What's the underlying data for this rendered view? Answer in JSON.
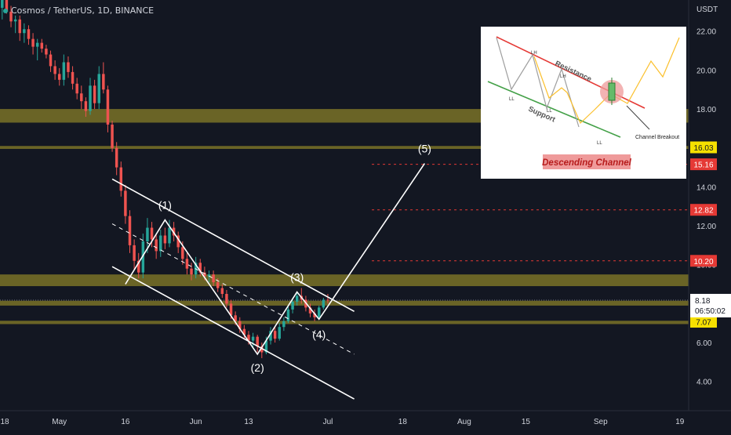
{
  "header": {
    "symbol": "Cosmos / TetherUS, 1D, BINANCE"
  },
  "colors": {
    "background": "#131722",
    "up_candle": "#26a69a",
    "down_candle": "#ef5350",
    "zone": "#b2a429",
    "text": "#d1d4dc",
    "target_line": "#e53935",
    "pattern": "#ffffff"
  },
  "chart_data": {
    "type": "candlestick",
    "title": "Cosmos / TetherUS, 1D, BINANCE",
    "price_axis_label": "USDT",
    "y_ticks": [
      4.0,
      6.0,
      8.0,
      10.0,
      12.0,
      14.0,
      18.0,
      20.0,
      22.0
    ],
    "ylim": [
      2.5,
      23.6
    ],
    "x_ticks": [
      "18",
      "May",
      "16",
      "Jun",
      "13",
      "Jul",
      "18",
      "Aug",
      "15",
      "Sep",
      "19"
    ],
    "x_tick_days": [
      -13,
      0,
      15,
      31,
      43,
      61,
      78,
      92,
      106,
      123,
      141
    ],
    "xlim_days": [
      -13.5,
      143
    ],
    "current_price": "8.18",
    "countdown": "06:50:02",
    "price_labels": [
      {
        "text": "16.03",
        "value": 16.03,
        "style": "zone"
      },
      {
        "text": "15.16",
        "value": 15.16,
        "style": "target"
      },
      {
        "text": "12.82",
        "value": 12.82,
        "style": "target"
      },
      {
        "text": "10.20",
        "value": 10.2,
        "style": "target"
      },
      {
        "text": "7.07",
        "value": 7.07,
        "style": "zone"
      }
    ],
    "zones": [
      {
        "low": 17.3,
        "high": 18.0
      },
      {
        "low": 15.95,
        "high": 16.1
      },
      {
        "low": 8.9,
        "high": 9.5
      },
      {
        "low": 7.9,
        "high": 8.15
      },
      {
        "low": 6.95,
        "high": 7.12
      }
    ],
    "target_levels": [
      15.16,
      12.82,
      10.2
    ],
    "candles": [
      [
        -13,
        23.2,
        23.8,
        22.6,
        23.6
      ],
      [
        -12,
        23.6,
        23.9,
        22.9,
        23.0
      ],
      [
        -11,
        23.0,
        23.3,
        22.2,
        22.5
      ],
      [
        -10,
        22.5,
        22.8,
        21.9,
        22.6
      ],
      [
        -9,
        22.6,
        22.8,
        21.5,
        21.9
      ],
      [
        -8,
        21.9,
        22.4,
        21.4,
        22.1
      ],
      [
        -7,
        22.1,
        22.3,
        21.3,
        21.6
      ],
      [
        -6,
        21.6,
        21.9,
        20.8,
        21.2
      ],
      [
        -5,
        21.2,
        21.6,
        20.5,
        21.4
      ],
      [
        -4,
        21.4,
        21.6,
        20.9,
        21.1
      ],
      [
        -3,
        21.1,
        21.3,
        20.6,
        20.8
      ],
      [
        -2,
        20.8,
        21.0,
        19.9,
        20.2
      ],
      [
        -1,
        20.2,
        20.5,
        19.5,
        19.8
      ],
      [
        0,
        19.8,
        20.1,
        19.2,
        19.5
      ],
      [
        1,
        19.5,
        20.8,
        19.2,
        20.4
      ],
      [
        2,
        20.4,
        20.7,
        19.6,
        19.9
      ],
      [
        3,
        19.9,
        20.2,
        19.0,
        19.3
      ],
      [
        4,
        19.3,
        19.6,
        18.5,
        18.8
      ],
      [
        5,
        18.8,
        19.2,
        18.0,
        18.4
      ],
      [
        6,
        18.4,
        18.6,
        17.6,
        17.9
      ],
      [
        7,
        17.9,
        19.6,
        17.7,
        19.2
      ],
      [
        8,
        19.2,
        19.5,
        18.0,
        18.3
      ],
      [
        9,
        18.3,
        20.2,
        18.0,
        19.8
      ],
      [
        10,
        19.8,
        20.4,
        18.8,
        19.0
      ],
      [
        11,
        19.0,
        19.2,
        16.8,
        17.2
      ],
      [
        12,
        17.2,
        17.4,
        15.8,
        16.0
      ],
      [
        13,
        16.0,
        16.3,
        14.6,
        15.0
      ],
      [
        14,
        15.0,
        15.3,
        13.5,
        13.8
      ],
      [
        15,
        13.8,
        14.1,
        12.1,
        12.5
      ],
      [
        16,
        12.5,
        12.8,
        10.6,
        11.0
      ],
      [
        17,
        11.0,
        11.3,
        9.7,
        10.2
      ],
      [
        18,
        10.2,
        10.6,
        9.3,
        9.6
      ],
      [
        19,
        9.6,
        11.6,
        9.3,
        11.2
      ],
      [
        20,
        11.2,
        12.4,
        10.6,
        11.9
      ],
      [
        21,
        11.9,
        12.2,
        10.9,
        11.3
      ],
      [
        22,
        11.3,
        11.6,
        10.3,
        10.7
      ],
      [
        23,
        10.7,
        11.8,
        10.4,
        11.5
      ],
      [
        24,
        11.5,
        11.9,
        10.8,
        11.1
      ],
      [
        25,
        11.1,
        12.3,
        10.9,
        11.9
      ],
      [
        26,
        11.9,
        12.2,
        11.2,
        11.5
      ],
      [
        27,
        11.5,
        11.7,
        10.6,
        10.9
      ],
      [
        28,
        10.9,
        11.2,
        10.0,
        10.3
      ],
      [
        29,
        10.3,
        10.6,
        9.5,
        9.8
      ],
      [
        30,
        9.8,
        10.1,
        9.2,
        9.5
      ],
      [
        31,
        9.5,
        10.4,
        9.3,
        10.1
      ],
      [
        32,
        10.1,
        10.3,
        9.4,
        9.6
      ],
      [
        33,
        9.6,
        9.9,
        9.2,
        9.4
      ],
      [
        34,
        9.4,
        9.7,
        9.1,
        9.5
      ],
      [
        35,
        9.5,
        9.7,
        8.9,
        9.1
      ],
      [
        36,
        9.1,
        9.3,
        8.6,
        8.8
      ],
      [
        37,
        8.8,
        9.0,
        8.3,
        8.5
      ],
      [
        38,
        8.5,
        8.7,
        7.8,
        8.0
      ],
      [
        39,
        8.0,
        8.2,
        7.2,
        7.4
      ],
      [
        40,
        7.4,
        7.6,
        6.9,
        7.1
      ],
      [
        41,
        7.1,
        7.3,
        6.5,
        6.7
      ],
      [
        42,
        6.7,
        6.9,
        6.2,
        6.4
      ],
      [
        43,
        6.4,
        6.6,
        5.9,
        6.1
      ],
      [
        44,
        6.1,
        6.5,
        5.7,
        6.3
      ],
      [
        45,
        6.3,
        6.4,
        5.5,
        5.8
      ],
      [
        46,
        5.8,
        6.0,
        5.2,
        5.5
      ],
      [
        47,
        5.5,
        6.3,
        5.4,
        6.1
      ],
      [
        48,
        6.1,
        6.8,
        5.9,
        6.6
      ],
      [
        49,
        6.6,
        6.8,
        6.0,
        6.2
      ],
      [
        50,
        6.2,
        7.0,
        6.1,
        6.8
      ],
      [
        51,
        6.8,
        7.3,
        6.6,
        7.1
      ],
      [
        52,
        7.1,
        7.9,
        7.0,
        7.7
      ],
      [
        53,
        7.7,
        8.3,
        7.5,
        8.1
      ],
      [
        54,
        8.1,
        8.6,
        7.9,
        8.4
      ],
      [
        55,
        8.4,
        8.8,
        8.0,
        8.2
      ],
      [
        56,
        8.2,
        8.4,
        7.6,
        7.8
      ],
      [
        57,
        7.8,
        8.0,
        7.3,
        7.5
      ],
      [
        58,
        7.5,
        7.7,
        7.1,
        7.3
      ],
      [
        59,
        7.3,
        7.9,
        7.2,
        7.8
      ],
      [
        60,
        7.8,
        8.3,
        7.7,
        8.2
      ],
      [
        61,
        8.2,
        8.5,
        8.0,
        8.18
      ]
    ],
    "annotations": [
      {
        "label": "(1)",
        "x": 24,
        "y": 12.3
      },
      {
        "label": "(2)",
        "x": 45,
        "y": 5.4
      },
      {
        "label": "(3)",
        "x": 54,
        "y": 8.6
      },
      {
        "label": "(4)",
        "x": 59,
        "y": 7.2
      },
      {
        "label": "(5)",
        "x": 83,
        "y": 15.2
      }
    ],
    "wave_path": [
      [
        15,
        9.0
      ],
      [
        24,
        12.3
      ],
      [
        45,
        5.4
      ],
      [
        54,
        8.6
      ],
      [
        59,
        7.2
      ],
      [
        83,
        15.2
      ]
    ],
    "channel": {
      "upper": [
        [
          12,
          14.4
        ],
        [
          67,
          7.6
        ]
      ],
      "lower": [
        [
          12,
          9.9
        ],
        [
          67,
          3.1
        ]
      ],
      "mid": [
        [
          12,
          12.1
        ],
        [
          67,
          5.4
        ]
      ]
    }
  },
  "inset": {
    "caption": "Descending Channel",
    "resistance": "Resistance",
    "support": "Support",
    "breakout": "Channel Breakout",
    "lh1": "LH",
    "lh2": "LH",
    "ll1": "LL",
    "ll2": "LL",
    "ll3": "LL"
  }
}
